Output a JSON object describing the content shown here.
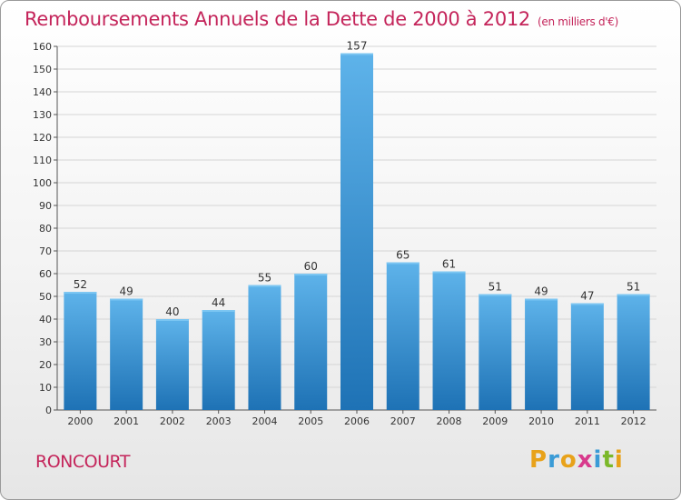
{
  "title": "Remboursements Annuels de la Dette de 2000 à 2012",
  "unit_note": "(en milliers d'€)",
  "commune": "RONCOURT",
  "brand": {
    "letters": [
      "P",
      "r",
      "o",
      "x",
      "i",
      "t",
      "i"
    ],
    "colors": [
      "#e8a21a",
      "#3a9bd6",
      "#e8a21a",
      "#d83a8c",
      "#3a9bd6",
      "#7bb829",
      "#e8a21a"
    ]
  },
  "colors": {
    "title": "#c4245a",
    "bar_light": "#5eb3ea",
    "bar_dark": "#1e72b5",
    "axis": "#555555",
    "grid": "#d5d5d5"
  },
  "chart_data": {
    "type": "bar",
    "title": "Remboursements Annuels de la Dette de 2000 à 2012",
    "xlabel": "",
    "ylabel": "",
    "categories": [
      "2000",
      "2001",
      "2002",
      "2003",
      "2004",
      "2005",
      "2006",
      "2007",
      "2008",
      "2009",
      "2010",
      "2011",
      "2012"
    ],
    "values": [
      52,
      49,
      40,
      44,
      55,
      60,
      157,
      65,
      61,
      51,
      49,
      47,
      51
    ],
    "ylim": [
      0,
      160
    ],
    "yticks": [
      0,
      10,
      20,
      30,
      40,
      50,
      60,
      70,
      80,
      90,
      100,
      110,
      120,
      130,
      140,
      150,
      160
    ]
  }
}
